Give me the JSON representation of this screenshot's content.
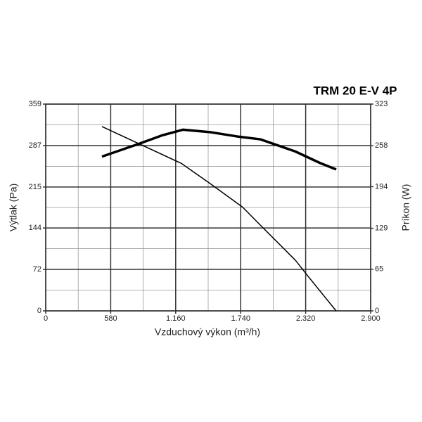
{
  "chart_data": {
    "type": "line",
    "title": "TRM 20 E-V 4P",
    "x_label": "Vzduchový výkon (m³/h)",
    "y_label": "Výtlak (Pa)",
    "y2_label": "Príkon (W)",
    "xlim": [
      0,
      2900
    ],
    "xticks": [
      0,
      580,
      {
        "value": 1160,
        "label": "1.160"
      },
      {
        "value": 1740,
        "label": "1.740"
      },
      {
        "value": 2320,
        "label": "2.320"
      },
      {
        "value": 2900,
        "label": "2.900"
      }
    ],
    "ylim": [
      0,
      359
    ],
    "yticks": [
      0,
      72,
      144,
      215,
      287,
      359
    ],
    "y2lim": [
      0,
      323
    ],
    "y2ticks": [
      0,
      65,
      129,
      194,
      258,
      323
    ],
    "grid": true,
    "series": [
      {
        "color": "#000000",
        "axis": "y",
        "width": 1.5,
        "x": [
          502,
          1211,
          1475,
          1758,
          1915,
          2228,
          2354,
          2592
        ],
        "values": [
          320,
          256,
          220,
          180,
          149,
          88,
          57,
          0
        ]
      },
      {
        "color": "#000000",
        "axis": "y2",
        "width": 3.5,
        "x": [
          502,
          816,
          1036,
          1224,
          1475,
          1726,
          1915,
          2228,
          2448,
          2592
        ],
        "values": [
          241,
          260,
          274,
          283,
          279,
          272,
          268,
          249,
          231,
          221
        ]
      }
    ]
  }
}
